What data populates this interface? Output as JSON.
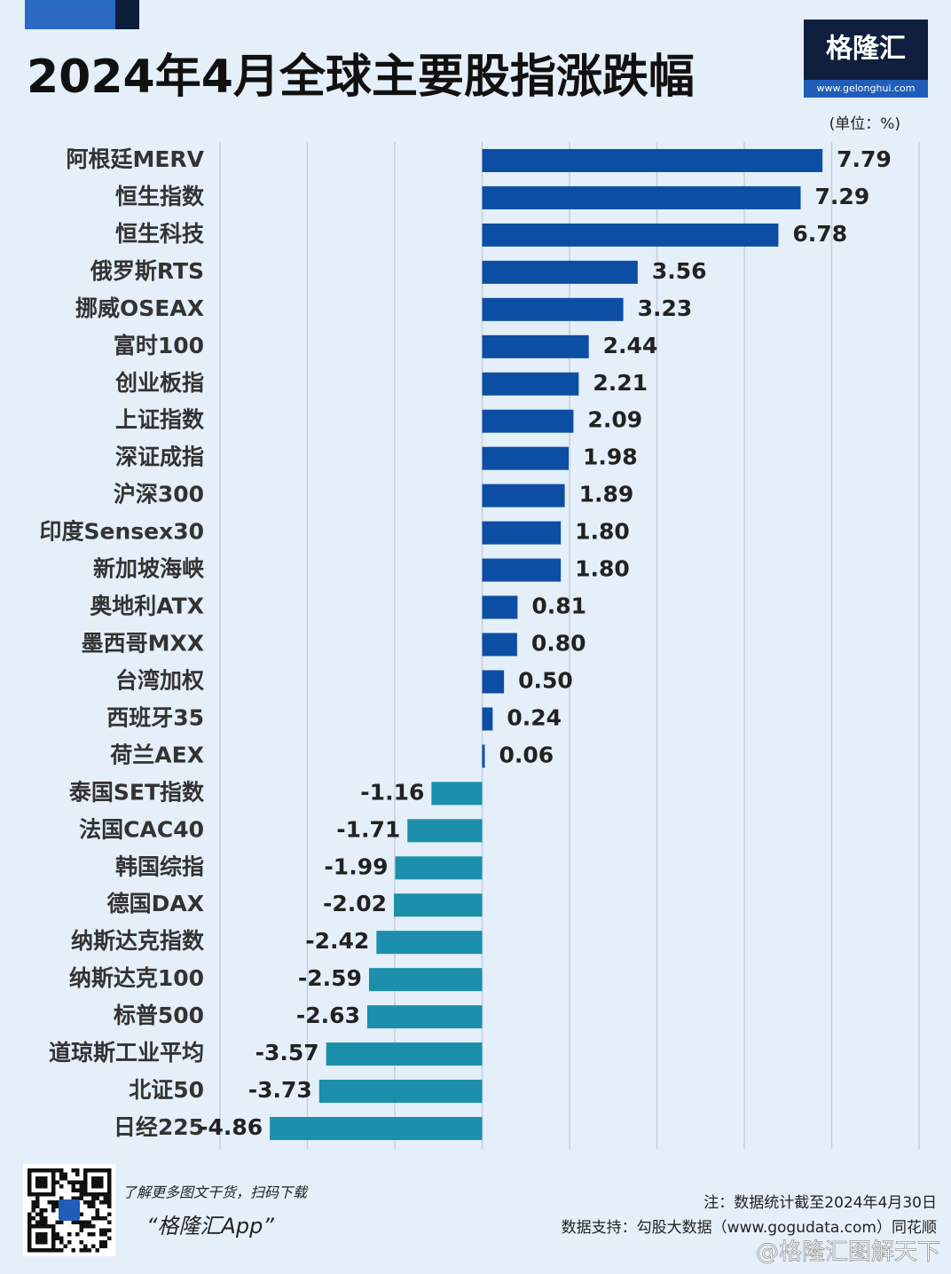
{
  "chart_data": {
    "type": "bar",
    "orientation": "horizontal",
    "title": "2024年4月全球主要股指涨跌幅",
    "unit_label": "(单位：%)",
    "categories": [
      "阿根廷MERV",
      "恒生指数",
      "恒生科技",
      "俄罗斯RTS",
      "挪威OSEAX",
      "富时100",
      "创业板指",
      "上证指数",
      "深证成指",
      "沪深300",
      "印度Sensex30",
      "新加坡海峡",
      "奥地利ATX",
      "墨西哥MXX",
      "台湾加权",
      "西班牙35",
      "荷兰AEX",
      "泰国SET指数",
      "法国CAC40",
      "韩国综指",
      "德国DAX",
      "纳斯达克指数",
      "纳斯达克100",
      "标普500",
      "道琼斯工业平均",
      "北证50",
      "日经225"
    ],
    "values": [
      7.79,
      7.29,
      6.78,
      3.56,
      3.23,
      2.44,
      2.21,
      2.09,
      1.98,
      1.89,
      1.8,
      1.8,
      0.81,
      0.8,
      0.5,
      0.24,
      0.06,
      -1.16,
      -1.71,
      -1.99,
      -2.02,
      -2.42,
      -2.59,
      -2.63,
      -3.57,
      -3.73,
      -4.86
    ],
    "value_labels": [
      "7.79",
      "7.29",
      "6.78",
      "3.56",
      "3.23",
      "2.44",
      "2.21",
      "2.09",
      "1.98",
      "1.89",
      "1.80",
      "1.80",
      "0.81",
      "0.80",
      "0.50",
      "0.24",
      "0.06",
      "-1.16",
      "-1.71",
      "-1.99",
      "-2.02",
      "-2.42",
      "-2.59",
      "-2.63",
      "-3.57",
      "-3.73",
      "-4.86"
    ],
    "color": "#0c4ea4",
    "negative_color": "#1b8fab",
    "xlim": [
      -6,
      10
    ],
    "xticks": [
      -6,
      -4,
      -2,
      0,
      2,
      4,
      6,
      8,
      10
    ],
    "grid": true
  },
  "brand": {
    "name": "格隆汇",
    "url": "www.gelonghui.com"
  },
  "footer": {
    "promo": "了解更多图文干货，扫码下载",
    "app": "“格隆汇App”",
    "note": "注：数据统计截至2024年4月30日",
    "source": "数据支持：勾股大数据（www.gogudata.com）同花顺",
    "watermark": "@格隆汇图解天下"
  }
}
